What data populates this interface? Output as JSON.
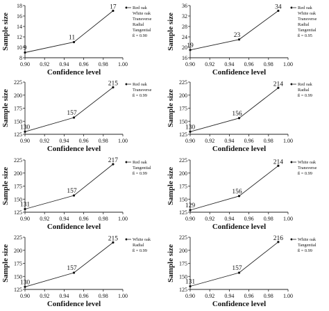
{
  "chart_data": [
    {
      "type": "line",
      "xlabel": "Confidence level",
      "ylabel": "Sample size",
      "xlim": [
        0.9,
        1.0
      ],
      "xticks": [
        "0.90",
        "0.92",
        "0.94",
        "0.96",
        "0.98",
        "1.00"
      ],
      "ylim": [
        8,
        18
      ],
      "yticks": [
        "8",
        "10",
        "12",
        "14",
        "16",
        "18"
      ],
      "x": [
        0.9,
        0.95,
        0.99
      ],
      "values": [
        9,
        11,
        17
      ],
      "data_labels": [
        "9",
        "11",
        "17"
      ],
      "legend": [
        "Red oak",
        "White oak",
        "Transverse",
        "Radial",
        "Tangential",
        "ß = 0.90"
      ]
    },
    {
      "type": "line",
      "xlabel": "Confidence level",
      "ylabel": "Sample size",
      "xlim": [
        0.9,
        1.0
      ],
      "xticks": [
        "0.90",
        "0.92",
        "0.94",
        "0.96",
        "0.98",
        "1.00"
      ],
      "ylim": [
        16,
        36
      ],
      "yticks": [
        "16",
        "20",
        "24",
        "28",
        "32",
        "36"
      ],
      "x": [
        0.9,
        0.95,
        0.99
      ],
      "values": [
        19,
        23,
        34
      ],
      "data_labels": [
        "19",
        "23",
        "34"
      ],
      "legend": [
        "Red oak",
        "White oak",
        "Transverse",
        "Radial",
        "Tangential",
        "ß = 0.95"
      ]
    },
    {
      "type": "line",
      "xlabel": "Confidence level",
      "ylabel": "Sample size",
      "xlim": [
        0.9,
        1.0
      ],
      "xticks": [
        "0.90",
        "0.92",
        "0.94",
        "0.96",
        "0.98",
        "1.00"
      ],
      "ylim": [
        125,
        225
      ],
      "yticks": [
        "125",
        "150",
        "175",
        "200",
        "225"
      ],
      "x": [
        0.9,
        0.95,
        0.99
      ],
      "values": [
        130,
        157,
        215
      ],
      "data_labels": [
        "130",
        "157",
        "215"
      ],
      "legend": [
        "Red oak",
        "Transverse",
        "ß = 0.99"
      ]
    },
    {
      "type": "line",
      "xlabel": "Confidence level",
      "ylabel": "Sample size",
      "xlim": [
        0.9,
        1.0
      ],
      "xticks": [
        "0.90",
        "0.92",
        "0.94",
        "0.96",
        "0.98",
        "1.00"
      ],
      "ylim": [
        125,
        225
      ],
      "yticks": [
        "125",
        "150",
        "175",
        "200",
        "225"
      ],
      "x": [
        0.9,
        0.95,
        0.99
      ],
      "values": [
        130,
        156,
        214
      ],
      "data_labels": [
        "130",
        "156",
        "214"
      ],
      "legend": [
        "Red oak",
        "Radial",
        "ß = 0.99"
      ]
    },
    {
      "type": "line",
      "xlabel": "Confidence level",
      "ylabel": "Sample size",
      "xlim": [
        0.9,
        1.0
      ],
      "xticks": [
        "0.90",
        "0.92",
        "0.94",
        "0.96",
        "0.98",
        "1.00"
      ],
      "ylim": [
        125,
        225
      ],
      "yticks": [
        "125",
        "150",
        "175",
        "200",
        "225"
      ],
      "x": [
        0.9,
        0.95,
        0.99
      ],
      "values": [
        131,
        157,
        217
      ],
      "data_labels": [
        "131",
        "157",
        "217"
      ],
      "legend": [
        "Red oak",
        "Tangential",
        "ß = 0.99"
      ]
    },
    {
      "type": "line",
      "xlabel": "Confidence level",
      "ylabel": "Sample size",
      "xlim": [
        0.9,
        1.0
      ],
      "xticks": [
        "0.90",
        "0.92",
        "0.94",
        "0.96",
        "0.98",
        "1.00"
      ],
      "ylim": [
        125,
        225
      ],
      "yticks": [
        "125",
        "150",
        "175",
        "200",
        "225"
      ],
      "x": [
        0.9,
        0.95,
        0.99
      ],
      "values": [
        129,
        156,
        214
      ],
      "data_labels": [
        "129",
        "156",
        "214"
      ],
      "legend": [
        "White oak",
        "Transverse",
        "ß = 0.99"
      ]
    },
    {
      "type": "line",
      "xlabel": "Confidence level",
      "ylabel": "Sample size",
      "xlim": [
        0.9,
        1.0
      ],
      "xticks": [
        "0.90",
        "0.92",
        "0.94",
        "0.96",
        "0.98",
        "1.00"
      ],
      "ylim": [
        125,
        225
      ],
      "yticks": [
        "125",
        "150",
        "175",
        "200",
        "225"
      ],
      "x": [
        0.9,
        0.95,
        0.99
      ],
      "values": [
        130,
        157,
        215
      ],
      "data_labels": [
        "130",
        "157",
        "215"
      ],
      "legend": [
        "White oak",
        "Radial",
        "ß = 0.99"
      ]
    },
    {
      "type": "line",
      "xlabel": "Confidence level",
      "ylabel": "Sample size",
      "xlim": [
        0.9,
        1.0
      ],
      "xticks": [
        "0.90",
        "0.92",
        "0.94",
        "0.96",
        "0.98",
        "1.00"
      ],
      "ylim": [
        125,
        225
      ],
      "yticks": [
        "125",
        "150",
        "175",
        "200",
        "225"
      ],
      "x": [
        0.9,
        0.95,
        0.99
      ],
      "values": [
        131,
        157,
        216
      ],
      "data_labels": [
        "131",
        "157",
        "216"
      ],
      "legend": [
        "White oak",
        "Tangential",
        "ß = 0.99"
      ]
    }
  ]
}
